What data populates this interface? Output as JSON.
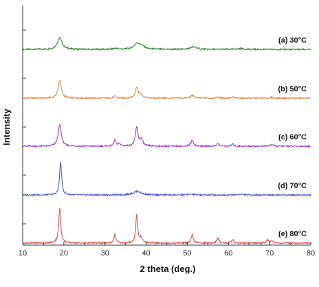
{
  "chart_data": {
    "type": "line",
    "title": "",
    "xlabel": "2 theta (deg.)",
    "ylabel": "Intensity",
    "xlim": [
      10,
      80
    ],
    "x_ticks": [
      "10",
      "20",
      "30",
      "40",
      "50",
      "60",
      "70",
      "80"
    ],
    "y_ticks_labeled": false,
    "grid": false,
    "legend": "none (labels placed at right of each trace)",
    "stacked_offset": true,
    "series": [
      {
        "name": "(a) 30°C",
        "color": "#3a8a3a",
        "baseline": 0.5,
        "peaks": [
          {
            "x": 19.0,
            "height": 1.4,
            "width": 0.7
          },
          {
            "x": 32.5,
            "height": 0.12,
            "width": 0.5
          },
          {
            "x": 37.8,
            "height": 0.7,
            "width": 0.9
          },
          {
            "x": 39.0,
            "height": 0.3,
            "width": 0.8
          },
          {
            "x": 51.5,
            "height": 0.3,
            "width": 1.0
          },
          {
            "x": 63.0,
            "height": 0.1,
            "width": 1.0
          }
        ]
      },
      {
        "name": "(b) 50°C",
        "color": "#e88a4a",
        "baseline": 0.5,
        "peaks": [
          {
            "x": 19.0,
            "height": 2.2,
            "width": 0.45
          },
          {
            "x": 32.4,
            "height": 0.25,
            "width": 0.3
          },
          {
            "x": 37.7,
            "height": 1.3,
            "width": 0.4
          },
          {
            "x": 38.7,
            "height": 0.4,
            "width": 0.5
          },
          {
            "x": 51.2,
            "height": 0.35,
            "width": 0.5
          },
          {
            "x": 57.5,
            "height": 0.15,
            "width": 0.4
          },
          {
            "x": 61.0,
            "height": 0.12,
            "width": 0.4
          },
          {
            "x": 70.5,
            "height": 0.1,
            "width": 0.4
          }
        ]
      },
      {
        "name": "(c) 60°C",
        "color": "#a33dd6",
        "baseline": 0.5,
        "peaks": [
          {
            "x": 19.0,
            "height": 2.6,
            "width": 0.45
          },
          {
            "x": 32.4,
            "height": 0.8,
            "width": 0.3
          },
          {
            "x": 33.5,
            "height": 0.3,
            "width": 0.3
          },
          {
            "x": 37.7,
            "height": 2.3,
            "width": 0.35
          },
          {
            "x": 38.8,
            "height": 0.8,
            "width": 0.45
          },
          {
            "x": 51.2,
            "height": 0.7,
            "width": 0.4
          },
          {
            "x": 57.4,
            "height": 0.3,
            "width": 0.35
          },
          {
            "x": 61.0,
            "height": 0.25,
            "width": 0.4
          },
          {
            "x": 70.5,
            "height": 0.2,
            "width": 0.5
          }
        ]
      },
      {
        "name": "(d) 70°C",
        "color": "#4a5ad6",
        "baseline": 0.5,
        "peaks": [
          {
            "x": 19.2,
            "height": 4.0,
            "width": 0.3
          },
          {
            "x": 37.8,
            "height": 0.45,
            "width": 1.1
          },
          {
            "x": 51.0,
            "height": 0.1,
            "width": 1.0
          },
          {
            "x": 63.0,
            "height": 0.08,
            "width": 1.0
          }
        ]
      },
      {
        "name": "(e) 80°C",
        "color": "#e05050",
        "baseline": 0.5,
        "peaks": [
          {
            "x": 19.0,
            "height": 4.2,
            "width": 0.3
          },
          {
            "x": 32.4,
            "height": 1.1,
            "width": 0.25
          },
          {
            "x": 37.7,
            "height": 3.4,
            "width": 0.28
          },
          {
            "x": 38.8,
            "height": 0.6,
            "width": 0.35
          },
          {
            "x": 51.2,
            "height": 1.0,
            "width": 0.3
          },
          {
            "x": 57.4,
            "height": 0.6,
            "width": 0.3
          },
          {
            "x": 61.0,
            "height": 0.4,
            "width": 0.3
          },
          {
            "x": 69.5,
            "height": 0.35,
            "width": 0.3
          },
          {
            "x": 70.5,
            "height": 0.3,
            "width": 0.3
          }
        ]
      }
    ]
  }
}
